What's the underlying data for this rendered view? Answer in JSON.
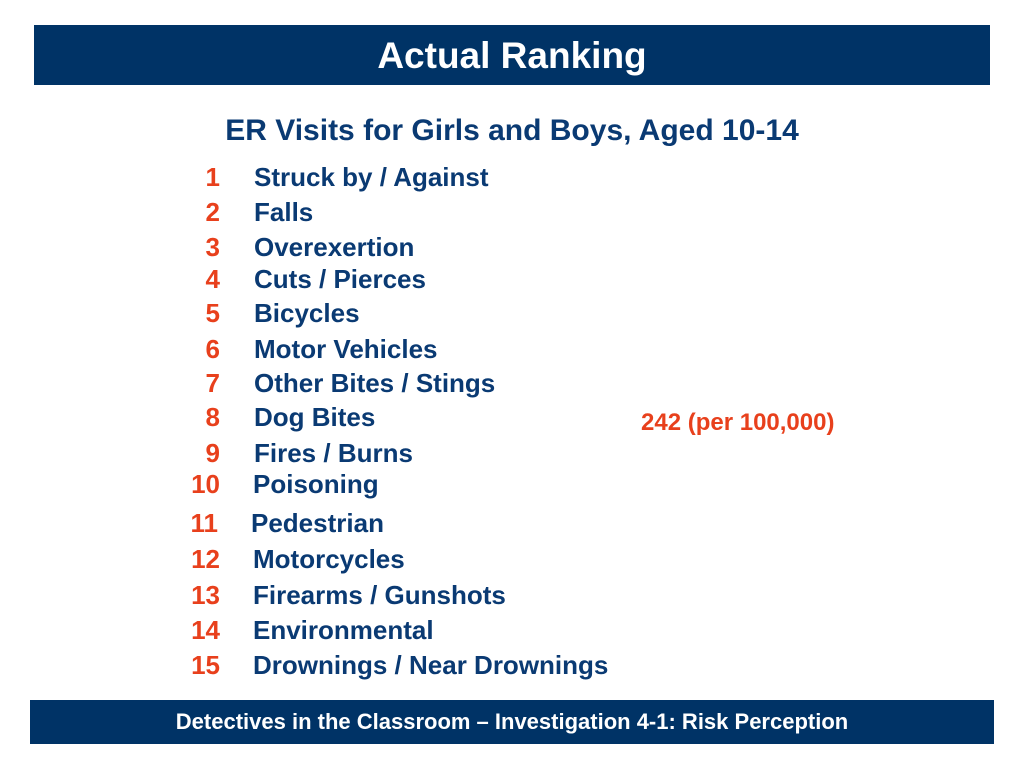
{
  "header": {
    "title": "Actual Ranking"
  },
  "subtitle": "ER Visits for Girls and Boys, Aged 10-14",
  "rankings": [
    {
      "rank": "1",
      "label": "Struck by / Against"
    },
    {
      "rank": "2",
      "label": "Falls"
    },
    {
      "rank": "3",
      "label": "Overexertion"
    },
    {
      "rank": "4",
      "label": "Cuts / Pierces"
    },
    {
      "rank": "5",
      "label": "Bicycles"
    },
    {
      "rank": "6",
      "label": "Motor Vehicles"
    },
    {
      "rank": "7",
      "label": "Other Bites / Stings"
    },
    {
      "rank": "8",
      "label": "Dog Bites"
    },
    {
      "rank": "9",
      "label": "Fires / Burns"
    },
    {
      "rank": "10",
      "label": "Poisoning"
    },
    {
      "rank": "11",
      "label": "Pedestrian"
    },
    {
      "rank": "12",
      "label": "Motorcycles"
    },
    {
      "rank": "13",
      "label": "Firearms / Gunshots"
    },
    {
      "rank": "14",
      "label": "Environmental"
    },
    {
      "rank": "15",
      "label": "Drownings / Near Drownings"
    }
  ],
  "rate_note": "242 (per 100,000)",
  "footer": {
    "text": "Detectives in the Classroom – Investigation 4-1:  Risk Perception"
  },
  "colors": {
    "banner": "#003366",
    "heading_text": "#0a3a73",
    "rank_number": "#e8401c",
    "rate_note": "#e8401c"
  }
}
